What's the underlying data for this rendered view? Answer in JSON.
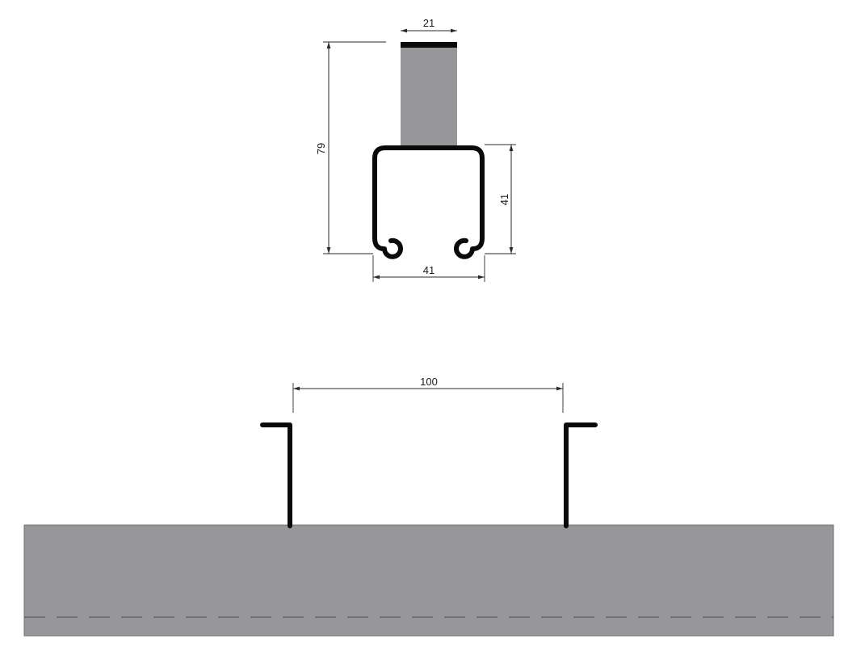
{
  "section_view": {
    "dimensions": {
      "rod_width": "21",
      "overall_height": "79",
      "channel_height": "41",
      "channel_width": "41"
    }
  },
  "elevation_view": {
    "dimensions": {
      "bracket_spacing": "100"
    }
  },
  "colors": {
    "fill_grey": "#97979b",
    "profile_black": "#0a0a0a",
    "dimension_line": "#2a2a2a",
    "background": "#ffffff",
    "hidden_line": "#4a4a4a"
  }
}
